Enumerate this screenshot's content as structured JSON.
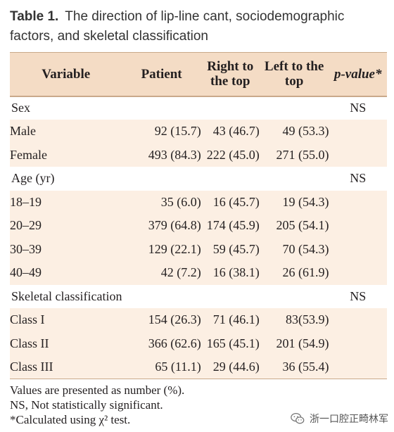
{
  "caption": {
    "label": "Table 1.",
    "text": "The direction of lip-line cant, sociodemographic factors, and skeletal classification"
  },
  "table": {
    "headers": {
      "variable": "Variable",
      "patient": "Patient",
      "right_line1": "Right to",
      "right_line2": "the top",
      "left_line1": "Left to the",
      "left_line2": "top",
      "pvalue": "p-value*"
    },
    "rows": [
      {
        "name": "Sex",
        "patient": "",
        "right": "",
        "left": "",
        "p": "NS"
      },
      {
        "name": "Male",
        "patient": "92 (15.7)",
        "right": "43 (46.7)",
        "left": "49 (53.3)",
        "p": ""
      },
      {
        "name": "Female",
        "patient": "493 (84.3)",
        "right": "222 (45.0)",
        "left": "271 (55.0)",
        "p": ""
      },
      {
        "name": "Age (yr)",
        "patient": "",
        "right": "",
        "left": "",
        "p": "NS"
      },
      {
        "name": "18–19",
        "patient": "35 (6.0)",
        "right": "16 (45.7)",
        "left": "19 (54.3)",
        "p": ""
      },
      {
        "name": "20–29",
        "patient": "379 (64.8)",
        "right": "174 (45.9)",
        "left": "205 (54.1)",
        "p": ""
      },
      {
        "name": "30–39",
        "patient": "129 (22.1)",
        "right": "59 (45.7)",
        "left": "70 (54.3)",
        "p": ""
      },
      {
        "name": "40–49",
        "patient": "42 (7.2)",
        "right": "16 (38.1)",
        "left": "26 (61.9)",
        "p": ""
      },
      {
        "name": "Skeletal classification",
        "patient": "",
        "right": "",
        "left": "",
        "p": "NS"
      },
      {
        "name": "Class I",
        "patient": "154 (26.3)",
        "right": "71 (46.1)",
        "left": "83(53.9)",
        "p": ""
      },
      {
        "name": "Class II",
        "patient": "366 (62.6)",
        "right": "165 (45.1)",
        "left": "201 (54.9)",
        "p": ""
      },
      {
        "name": "Class III",
        "patient": "65 (11.1)",
        "right": "29 (44.6)",
        "left": "36 (55.4)",
        "p": ""
      }
    ]
  },
  "notes": {
    "line1": "Values are presented as number (%).",
    "line2": "NS, Not statistically significant.",
    "line3": "*Calculated using χ² test."
  },
  "watermark": {
    "text": "浙一口腔正畸林军",
    "icon": "wechat-icon"
  }
}
